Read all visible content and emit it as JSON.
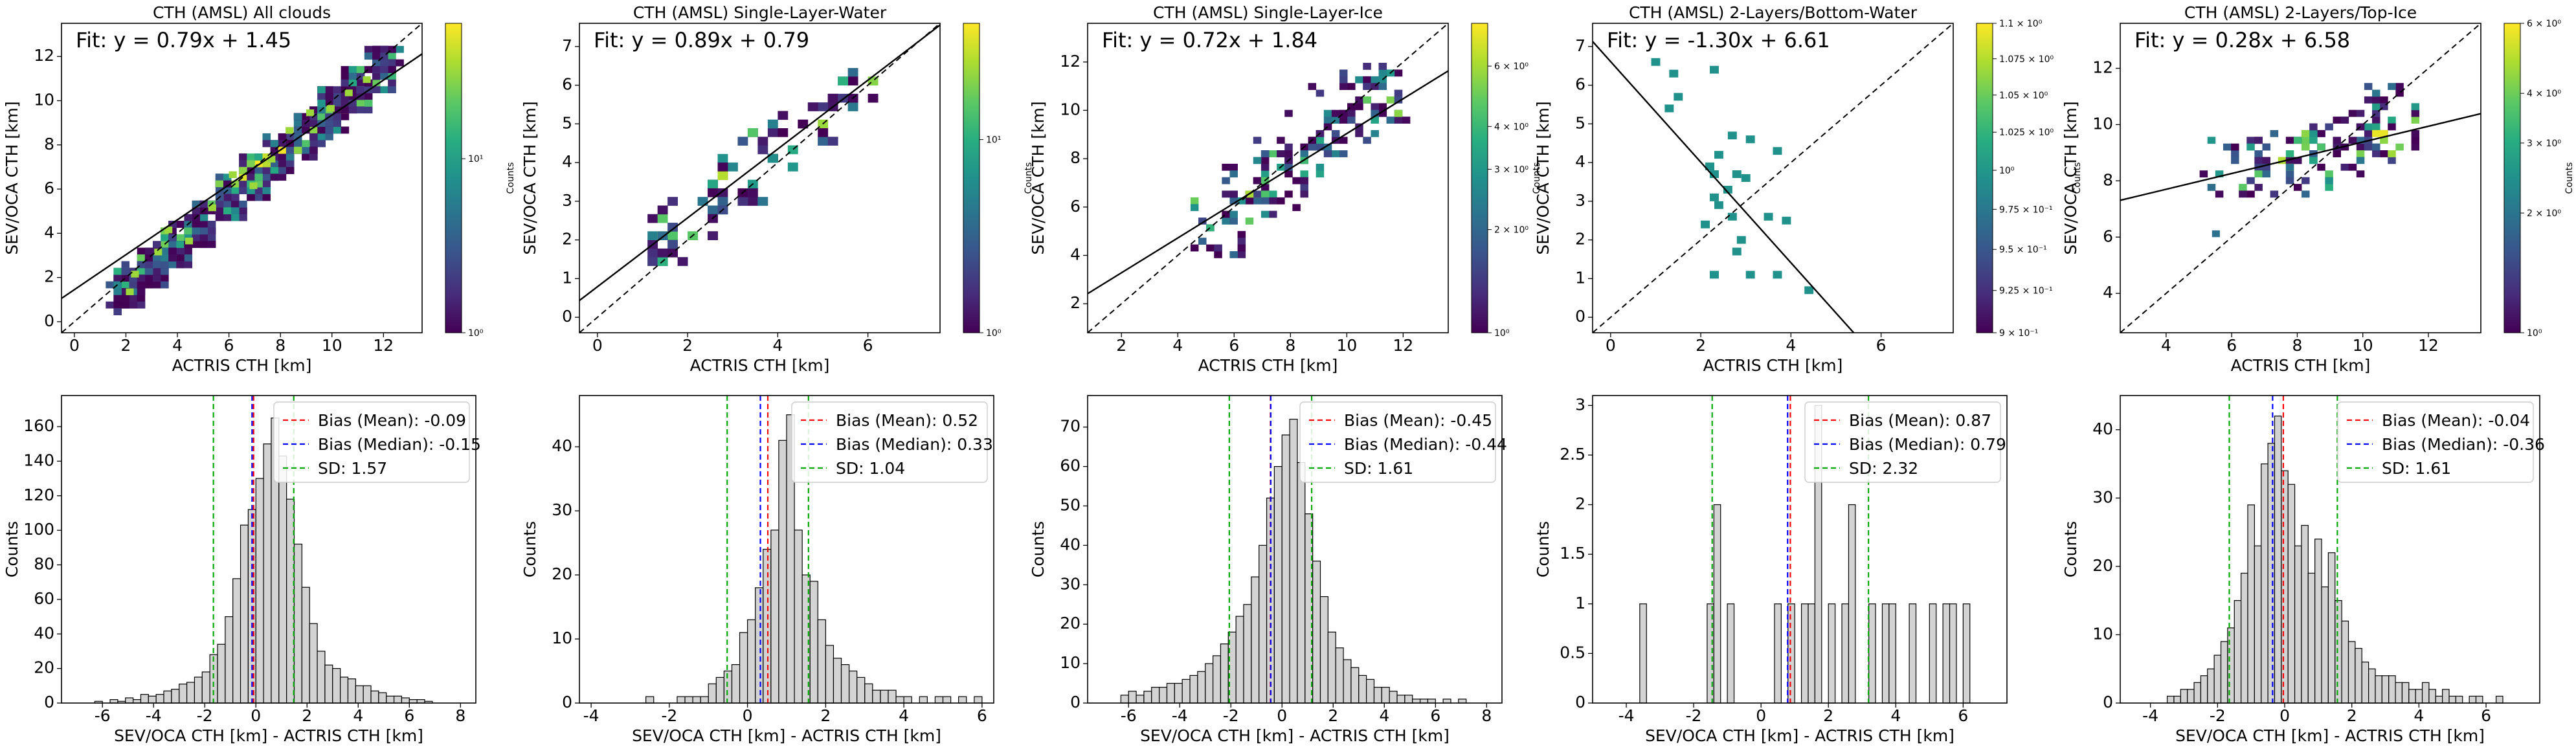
{
  "chart_data": [
    {
      "type": "heatmap",
      "title": "CTH (AMSL) All clouds",
      "xlabel": "ACTRIS CTH [km]",
      "ylabel": "SEV/OCA CTH [km]",
      "xlim": [
        -0.5,
        13.5
      ],
      "ylim": [
        -0.5,
        13.5
      ],
      "xticks": [
        0,
        2,
        4,
        6,
        8,
        10,
        12
      ],
      "yticks": [
        0,
        2,
        4,
        6,
        8,
        10,
        12
      ],
      "fit_label": "Fit: y = 0.79x + 1.45",
      "fit": {
        "slope": 0.79,
        "intercept": 1.45
      },
      "one_to_one_line": true,
      "colorbar": {
        "label": "Counts",
        "scale": "log",
        "min": 1,
        "max": 60,
        "tick_values": [
          1,
          10
        ],
        "tick_labels": [
          "10⁰",
          "10¹"
        ]
      },
      "bins_x": [
        [
          1.5,
          2.5
        ],
        [
          2.5,
          3.5
        ],
        [
          3.5,
          4.5
        ],
        [
          4.5,
          5.5
        ],
        [
          5.5,
          6.5
        ],
        [
          6.5,
          7.5
        ],
        [
          7.5,
          8.5
        ],
        [
          8.5,
          9.5
        ],
        [
          9.5,
          10.5
        ],
        [
          10.5,
          11.5
        ],
        [
          11.5,
          12.5
        ]
      ],
      "bins_y": [
        [
          0.5,
          2.5
        ],
        [
          1.5,
          3.5
        ],
        [
          2.5,
          4.5
        ],
        [
          3.5,
          5.5
        ],
        [
          4.5,
          6.5
        ],
        [
          5.5,
          7.5
        ],
        [
          6.5,
          8.5
        ],
        [
          7.5,
          9.5
        ],
        [
          8.5,
          10.5
        ],
        [
          9.5,
          11.5
        ],
        [
          10.5,
          12.5
        ]
      ],
      "scatter_points": [
        [
          2.0,
          1.2
        ],
        [
          2.2,
          2.0
        ],
        [
          3.1,
          3.0
        ],
        [
          3.5,
          4.0
        ],
        [
          4.3,
          3.5
        ],
        [
          5.2,
          5.0
        ],
        [
          6.0,
          6.5
        ],
        [
          6.8,
          6.0
        ],
        [
          7.5,
          7.2
        ],
        [
          8.2,
          8.5
        ],
        [
          9.0,
          9.3
        ],
        [
          9.8,
          9.5
        ],
        [
          10.5,
          10.2
        ],
        [
          11.2,
          10.8
        ]
      ]
    },
    {
      "type": "heatmap",
      "title": "CTH (AMSL) Single-Layer-Water",
      "xlabel": "ACTRIS CTH [km]",
      "ylabel": "SEV/OCA CTH [km]",
      "xlim": [
        -0.4,
        7.6
      ],
      "ylim": [
        -0.4,
        7.6
      ],
      "xticks": [
        0,
        2,
        4,
        6
      ],
      "yticks": [
        0,
        1,
        2,
        3,
        4,
        5,
        6,
        7
      ],
      "fit_label": "Fit: y = 0.89x + 0.79",
      "fit": {
        "slope": 0.89,
        "intercept": 0.79
      },
      "one_to_one_line": true,
      "colorbar": {
        "label": "Counts",
        "scale": "log",
        "min": 1,
        "max": 40,
        "tick_values": [
          1,
          10
        ],
        "tick_labels": [
          "10⁰",
          "10¹"
        ]
      },
      "bins_x": [
        [
          0.8,
          1.6
        ],
        [
          1.4,
          2.2
        ],
        [
          2.0,
          2.8
        ],
        [
          2.6,
          3.4
        ],
        [
          3.2,
          4.0
        ],
        [
          3.8,
          4.6
        ],
        [
          4.6,
          5.4
        ],
        [
          5.4,
          6.2
        ]
      ],
      "bins_y": [
        [
          1.2,
          2.6
        ],
        [
          1.4,
          3.0
        ],
        [
          2.0,
          3.6
        ],
        [
          2.6,
          4.2
        ],
        [
          3.0,
          5.0
        ],
        [
          3.8,
          5.2
        ],
        [
          4.4,
          5.8
        ],
        [
          5.4,
          6.4
        ]
      ]
    },
    {
      "type": "heatmap",
      "title": "CTH (AMSL) Single-Layer-Ice",
      "xlabel": "ACTRIS CTH [km]",
      "ylabel": "SEV/OCA CTH [km]",
      "xlim": [
        0.8,
        13.6
      ],
      "ylim": [
        0.8,
        13.6
      ],
      "xticks": [
        2,
        4,
        6,
        8,
        10,
        12
      ],
      "yticks": [
        2,
        4,
        6,
        8,
        10,
        12
      ],
      "fit_label": "Fit: y = 0.72x + 1.84",
      "fit": {
        "slope": 0.72,
        "intercept": 1.84
      },
      "one_to_one_line": true,
      "colorbar": {
        "label": "Counts",
        "scale": "log",
        "min": 1,
        "max": 8,
        "tick_values": [
          1,
          2,
          3,
          4,
          6
        ],
        "tick_labels": [
          "10⁰",
          "2 × 10⁰",
          "3 × 10⁰",
          "4 × 10⁰",
          "6 × 10⁰"
        ]
      },
      "bins_x": [
        [
          4.5,
          6.5
        ],
        [
          5.5,
          7.5
        ],
        [
          6.5,
          8.5
        ],
        [
          7.5,
          9.5
        ],
        [
          8.5,
          10.5
        ],
        [
          9.5,
          11.5
        ],
        [
          10.5,
          12.0
        ]
      ],
      "bins_y": [
        [
          4.0,
          6.5
        ],
        [
          5.5,
          8.0
        ],
        [
          6.0,
          9.0
        ],
        [
          7.0,
          10.0
        ],
        [
          8.0,
          11.0
        ],
        [
          8.5,
          11.5
        ],
        [
          9.5,
          12.0
        ]
      ]
    },
    {
      "type": "heatmap",
      "title": "CTH (AMSL) 2-Layers/Bottom-Water",
      "xlabel": "ACTRIS CTH [km]",
      "ylabel": "SEV/OCA CTH [km]",
      "xlim": [
        -0.4,
        7.6
      ],
      "ylim": [
        -0.4,
        7.6
      ],
      "xticks": [
        0,
        2,
        4,
        6
      ],
      "yticks": [
        0,
        1,
        2,
        3,
        4,
        5,
        6,
        7
      ],
      "fit_label": "Fit: y = -1.30x + 6.61",
      "fit": {
        "slope": -1.3,
        "intercept": 6.61
      },
      "one_to_one_line": true,
      "colorbar": {
        "label": "Counts",
        "scale": "log",
        "min": 0.9,
        "max": 1.1,
        "tick_values": [
          0.9,
          0.925,
          0.95,
          0.975,
          1.0,
          1.025,
          1.05,
          1.075,
          1.1
        ],
        "tick_labels": [
          "9 × 10⁻¹",
          "9.25 × 10⁻¹",
          "9.5 × 10⁻¹",
          "9.75 × 10⁻¹",
          "10⁰",
          "1.025 × 10⁰",
          "1.05 × 10⁰",
          "1.075 × 10⁰",
          "1.1 × 10⁰"
        ]
      },
      "points": [
        [
          0.9,
          6.5
        ],
        [
          1.3,
          6.2
        ],
        [
          1.4,
          5.6
        ],
        [
          1.2,
          5.3
        ],
        [
          2.2,
          6.3
        ],
        [
          2.6,
          4.6
        ],
        [
          2.3,
          4.1
        ],
        [
          3.0,
          4.5
        ],
        [
          3.6,
          4.2
        ],
        [
          2.1,
          3.8
        ],
        [
          2.2,
          3.6
        ],
        [
          2.7,
          3.6
        ],
        [
          2.9,
          3.5
        ],
        [
          2.5,
          3.2
        ],
        [
          2.2,
          3.0
        ],
        [
          2.3,
          2.8
        ],
        [
          2.6,
          2.5
        ],
        [
          3.4,
          2.5
        ],
        [
          3.8,
          2.4
        ],
        [
          2.0,
          2.3
        ],
        [
          2.8,
          1.9
        ],
        [
          2.7,
          1.6
        ],
        [
          3.0,
          1.0
        ],
        [
          2.2,
          1.0
        ],
        [
          3.6,
          1.0
        ],
        [
          4.3,
          0.6
        ]
      ]
    },
    {
      "type": "heatmap",
      "title": "CTH (AMSL) 2-Layers/Top-Ice",
      "xlabel": "ACTRIS CTH [km]",
      "ylabel": "SEV/OCA CTH [km]",
      "xlim": [
        2.6,
        13.6
      ],
      "ylim": [
        2.6,
        13.6
      ],
      "xticks": [
        4,
        6,
        8,
        10,
        12
      ],
      "yticks": [
        4,
        6,
        8,
        10,
        12
      ],
      "fit_label": "Fit: y = 0.28x + 6.58",
      "fit": {
        "slope": 0.28,
        "intercept": 6.58
      },
      "one_to_one_line": true,
      "colorbar": {
        "label": "Counts",
        "scale": "log",
        "min": 1,
        "max": 6,
        "tick_values": [
          1,
          2,
          3,
          4,
          6
        ],
        "tick_labels": [
          "10⁰",
          "2 × 10⁰",
          "3 × 10⁰",
          "4 × 10⁰",
          "6 × 10⁰"
        ]
      },
      "bins_x": [
        [
          5.2,
          7.0
        ],
        [
          6.8,
          8.6
        ],
        [
          7.6,
          9.4
        ],
        [
          8.4,
          10.2
        ],
        [
          9.2,
          11.0
        ],
        [
          10.0,
          11.8
        ]
      ],
      "bins_y": [
        [
          7.5,
          9.5
        ],
        [
          7.5,
          9.8
        ],
        [
          7.8,
          10.0
        ],
        [
          8.0,
          10.5
        ],
        [
          8.5,
          11.0
        ],
        [
          9.0,
          11.5
        ]
      ],
      "points": [
        [
          5.4,
          6.0
        ]
      ]
    },
    {
      "type": "bar",
      "xlabel": "SEV/OCA CTH [km] - ACTRIS CTH [km]",
      "ylabel": "Counts",
      "xlim": [
        -7.6,
        8.6
      ],
      "ylim": [
        0,
        178
      ],
      "xticks": [
        -6,
        -4,
        -2,
        0,
        2,
        4,
        6,
        8
      ],
      "yticks": [
        0,
        20,
        40,
        60,
        80,
        100,
        120,
        140,
        160
      ],
      "bin_start": -6.3,
      "bin_width": 0.3,
      "values": [
        1,
        0,
        2,
        1,
        3,
        2,
        5,
        4,
        5,
        7,
        8,
        11,
        12,
        15,
        18,
        28,
        34,
        50,
        72,
        103,
        112,
        130,
        150,
        165,
        143,
        118,
        92,
        67,
        46,
        30,
        22,
        20,
        15,
        14,
        10,
        10,
        7,
        6,
        4,
        4,
        3,
        2,
        2,
        1
      ],
      "bias_mean": -0.09,
      "bias_median": -0.15,
      "sd": 1.57,
      "legend": {
        "mean": "Bias (Mean): -0.09",
        "median": "Bias (Median): -0.15",
        "sd": "SD: 1.57"
      }
    },
    {
      "type": "bar",
      "xlabel": "SEV/OCA CTH [km] - ACTRIS CTH [km]",
      "ylabel": "Counts",
      "xlim": [
        -4.3,
        6.3
      ],
      "ylim": [
        0,
        48
      ],
      "xticks": [
        -4,
        -2,
        0,
        2,
        4,
        6
      ],
      "yticks": [
        0,
        10,
        20,
        30,
        40
      ],
      "bin_start": -2.6,
      "bin_width": 0.2,
      "values": [
        1,
        0,
        0,
        0,
        1,
        1,
        1,
        1,
        3,
        4,
        5,
        6,
        11,
        13,
        18,
        24,
        27,
        41,
        45,
        27,
        20,
        19,
        13,
        9,
        7,
        6,
        5,
        4,
        3,
        2,
        2,
        2,
        1,
        1,
        0,
        1,
        0,
        1,
        1,
        0,
        1,
        0,
        1
      ],
      "bias_mean": 0.52,
      "bias_median": 0.33,
      "sd": 1.04,
      "legend": {
        "mean": "Bias (Mean): 0.52",
        "median": "Bias (Median): 0.33",
        "sd": "SD: 1.04"
      }
    },
    {
      "type": "bar",
      "xlabel": "SEV/OCA CTH [km] - ACTRIS CTH [km]",
      "ylabel": "Counts",
      "xlim": [
        -7.6,
        8.6
      ],
      "ylim": [
        0,
        78
      ],
      "xticks": [
        -6,
        -4,
        -2,
        0,
        2,
        4,
        6,
        8
      ],
      "yticks": [
        0,
        10,
        20,
        30,
        40,
        50,
        60,
        70
      ],
      "bin_start": -6.3,
      "bin_width": 0.3,
      "values": [
        2,
        3,
        2,
        3,
        4,
        4,
        5,
        5,
        6,
        7,
        8,
        10,
        12,
        15,
        18,
        22,
        25,
        32,
        40,
        52,
        60,
        68,
        72,
        61,
        48,
        36,
        27,
        18,
        14,
        11,
        9,
        7,
        6,
        4,
        4,
        3,
        2,
        2,
        1,
        1,
        1,
        0,
        1,
        0,
        1
      ],
      "bias_mean": -0.45,
      "bias_median": -0.44,
      "sd": 1.61,
      "legend": {
        "mean": "Bias (Mean): -0.45",
        "median": "Bias (Median): -0.44",
        "sd": "SD: 1.61"
      }
    },
    {
      "type": "bar",
      "xlabel": "SEV/OCA CTH [km] - ACTRIS CTH [km]",
      "ylabel": "Counts",
      "xlim": [
        -5.0,
        7.3
      ],
      "ylim": [
        0,
        3.1
      ],
      "xticks": [
        -4,
        -2,
        0,
        2,
        4,
        6
      ],
      "yticks": [
        0.0,
        0.5,
        1.0,
        1.5,
        2.0,
        2.5,
        3.0
      ],
      "bin_start": -4.0,
      "bin_width": 0.2,
      "values": [
        0,
        0,
        1,
        0,
        0,
        0,
        0,
        0,
        0,
        0,
        0,
        0,
        1,
        2,
        0,
        1,
        0,
        0,
        0,
        0,
        0,
        0,
        1,
        0,
        1,
        0,
        1,
        1,
        3,
        0,
        1,
        0,
        1,
        2,
        0,
        0,
        1,
        0,
        1,
        1,
        0,
        0,
        1,
        0,
        0,
        1,
        0,
        1,
        1,
        0,
        1
      ],
      "bias_mean": 0.87,
      "bias_median": 0.79,
      "sd": 2.32,
      "legend": {
        "mean": "Bias (Mean): 0.87",
        "median": "Bias (Median): 0.79",
        "sd": "SD: 2.32"
      }
    },
    {
      "type": "bar",
      "xlabel": "SEV/OCA CTH [km] - ACTRIS CTH [km]",
      "ylabel": "Counts",
      "xlim": [
        -4.9,
        7.6
      ],
      "ylim": [
        0,
        45
      ],
      "xticks": [
        -4,
        -2,
        0,
        2,
        4,
        6
      ],
      "yticks": [
        0,
        10,
        20,
        30,
        40
      ],
      "bin_start": -3.5,
      "bin_width": 0.2,
      "values": [
        1,
        1,
        2,
        2,
        3,
        4,
        5,
        7,
        9,
        11,
        15,
        19,
        29,
        23,
        35,
        38,
        42,
        34,
        32,
        23,
        26,
        19,
        24,
        17,
        22,
        15,
        12,
        9,
        8,
        6,
        5,
        4,
        4,
        4,
        3,
        3,
        2,
        2,
        3,
        2,
        1,
        2,
        1,
        1,
        0,
        1,
        1,
        0,
        0,
        1
      ],
      "bias_mean": -0.04,
      "bias_median": -0.36,
      "sd": 1.61,
      "legend": {
        "mean": "Bias (Mean): -0.04",
        "median": "Bias (Median): -0.36",
        "sd": "SD: 1.61"
      }
    }
  ]
}
